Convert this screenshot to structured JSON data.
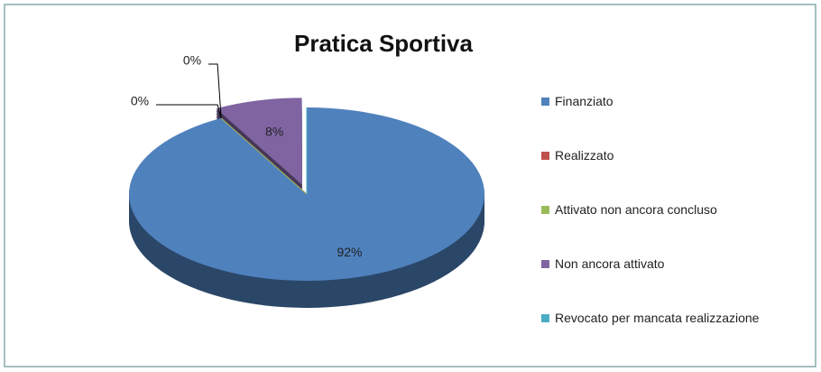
{
  "chart_data": {
    "type": "pie",
    "title": "Pratica Sportiva",
    "categories": [
      "Finanziato",
      "Realizzato",
      "Attivato non ancora concluso",
      "Non ancora attivato",
      "Revocato per mancata realizzazione"
    ],
    "values": [
      92,
      0,
      0,
      8,
      0
    ],
    "value_labels": [
      "92%",
      "0%",
      "0%",
      "8%",
      null
    ],
    "colors": [
      "#4f81bd",
      "#c0504d",
      "#9bbb59",
      "#8064a2",
      "#4bacc6"
    ],
    "legend": "right"
  }
}
